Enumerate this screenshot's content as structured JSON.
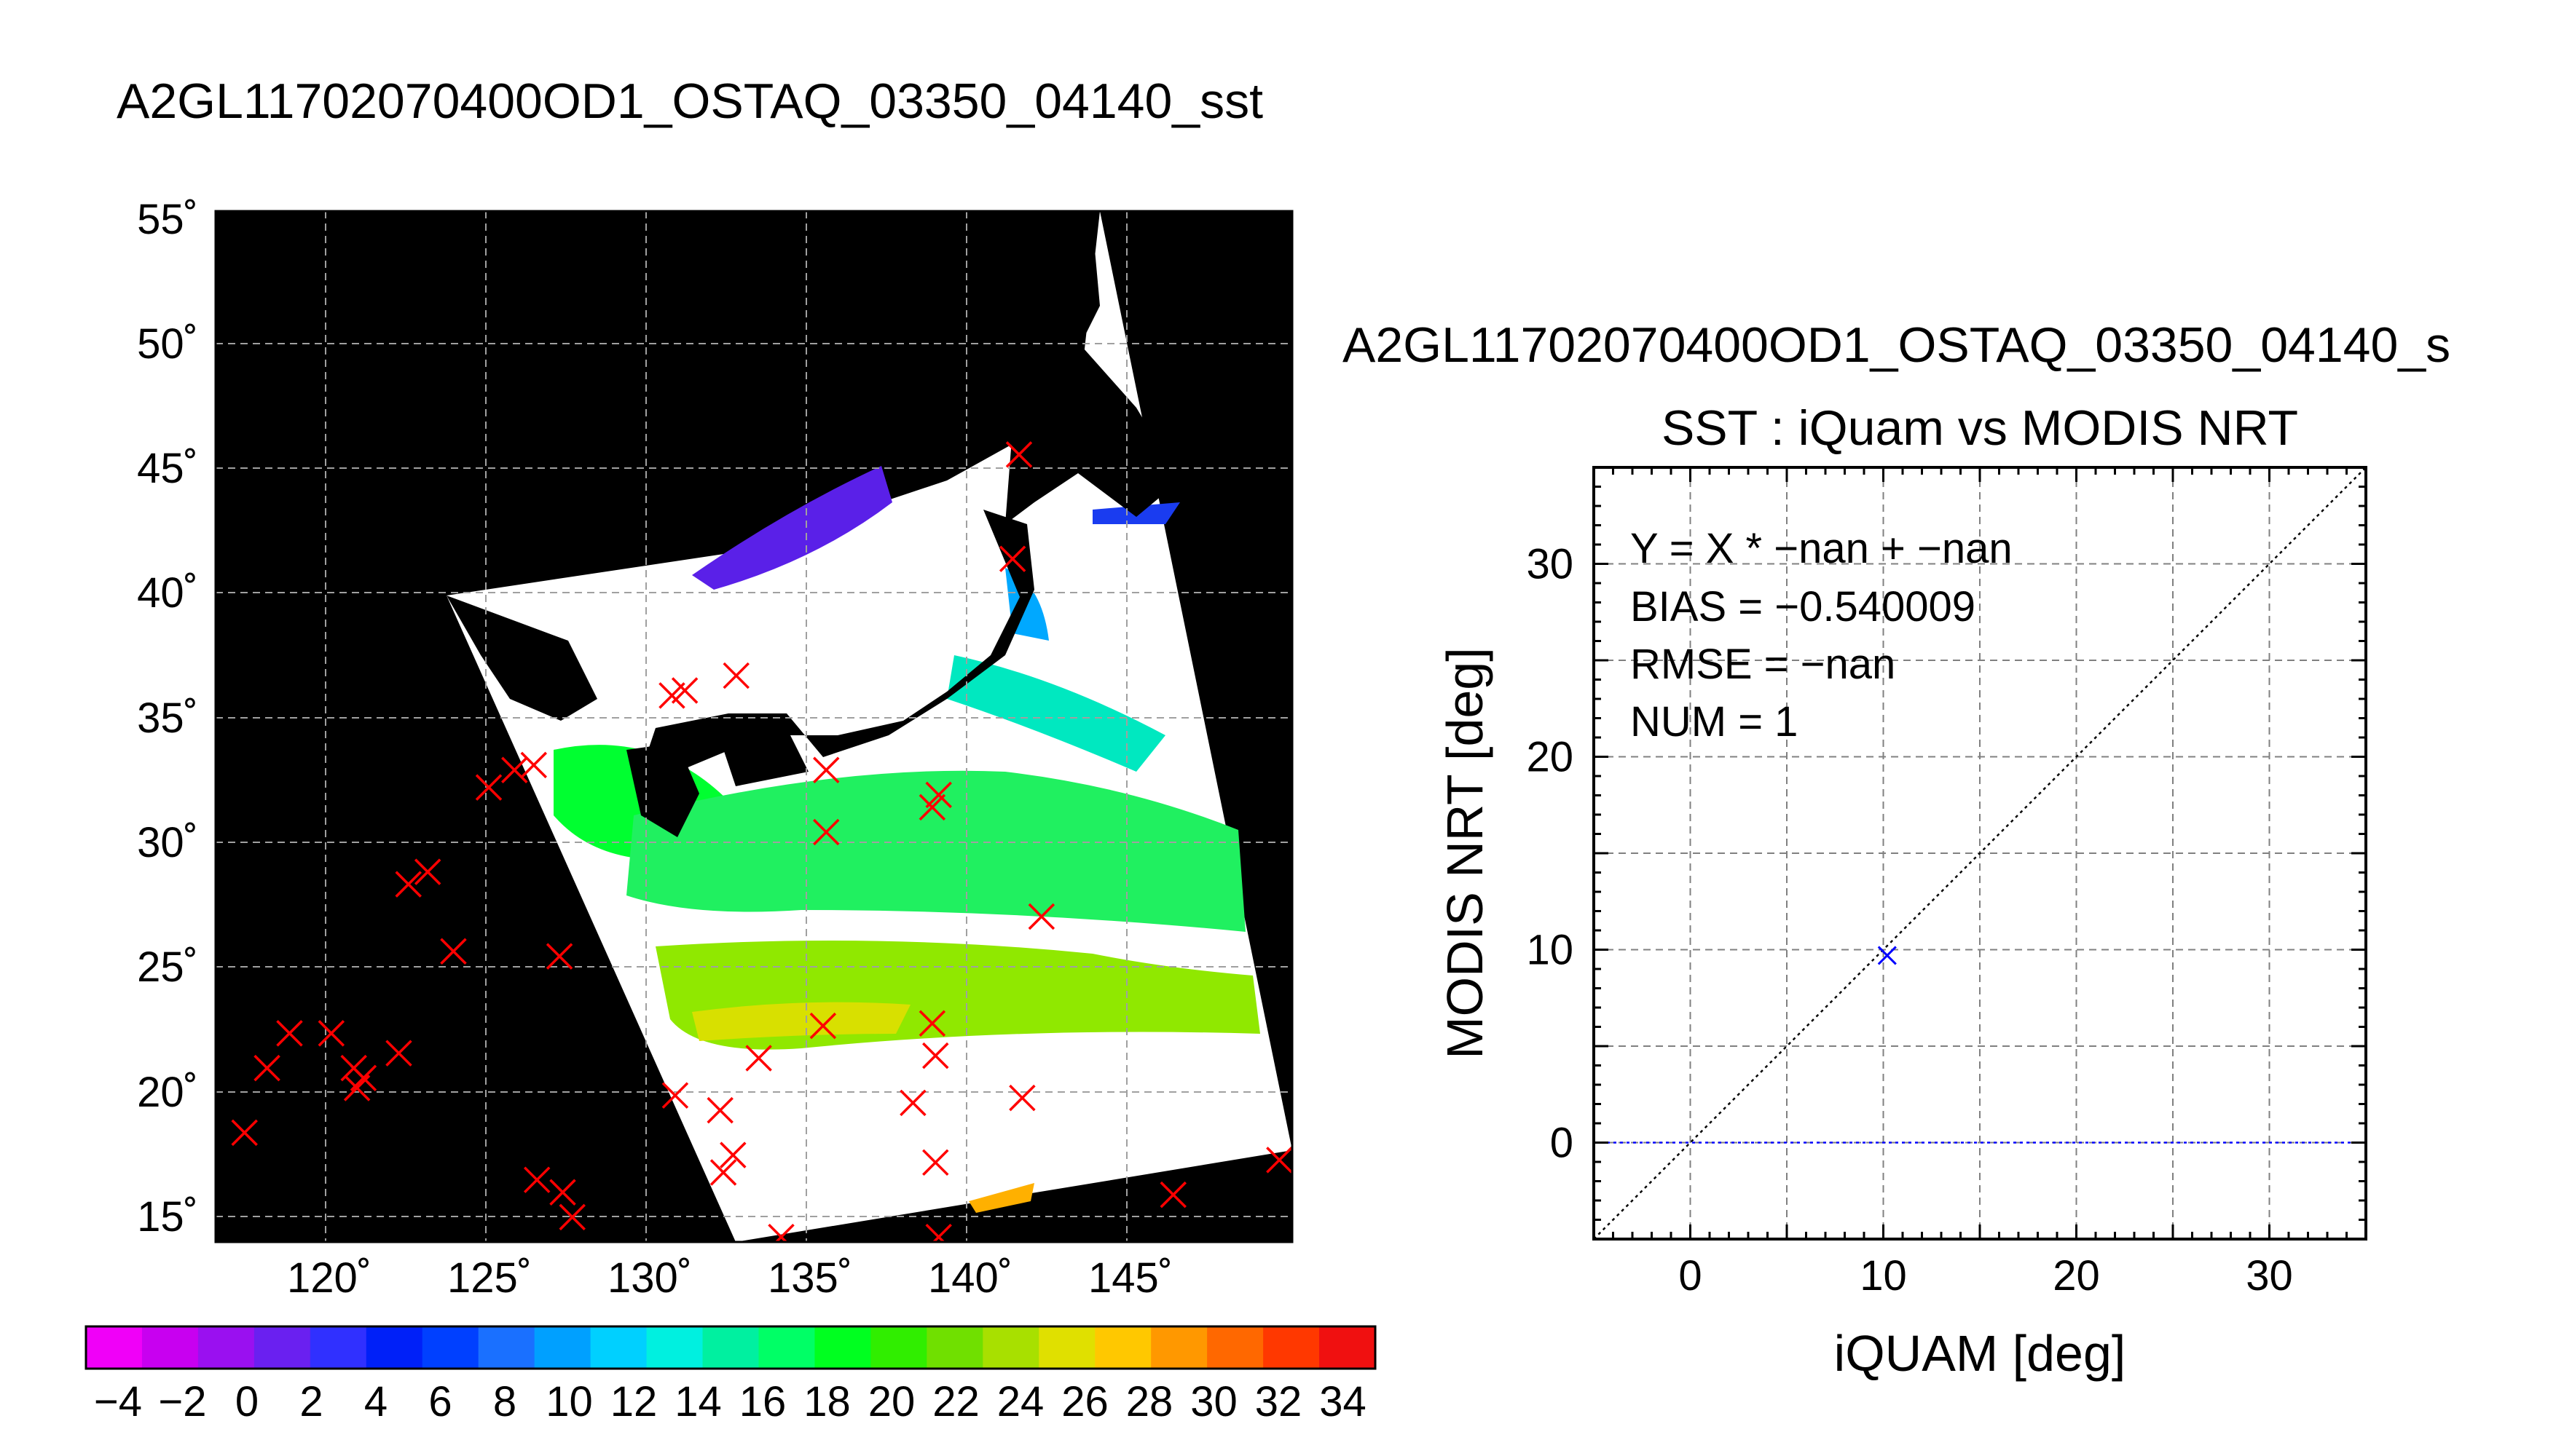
{
  "map_panel": {
    "title": "A2GL11702070400OD1_OSTAQ_03350_04140_sst",
    "lat_ticks": [
      "55˚",
      "50˚",
      "45˚",
      "40˚",
      "35˚",
      "30˚",
      "25˚",
      "20˚",
      "15˚"
    ],
    "lon_ticks": [
      "120˚",
      "125˚",
      "130˚",
      "135˚",
      "140˚",
      "145˚"
    ],
    "colorbar_ticks": [
      "−4",
      "−2",
      "0",
      "2",
      "4",
      "6",
      "8",
      "10",
      "12",
      "14",
      "16",
      "18",
      "20",
      "22",
      "24",
      "26",
      "28",
      "30",
      "32",
      "34"
    ],
    "colorbar_colors": [
      "#f000f8",
      "#c800f0",
      "#9a10f0",
      "#6a20f0",
      "#3030ff",
      "#0020f8",
      "#0040ff",
      "#1a70ff",
      "#00a0ff",
      "#00d0ff",
      "#00f0e0",
      "#00f0a0",
      "#00ff66",
      "#00ff20",
      "#30ee00",
      "#70e000",
      "#a8e000",
      "#e0e000",
      "#ffc800",
      "#ff9800",
      "#ff6800",
      "#ff3800",
      "#f01010"
    ],
    "marker_color": "#ff0000"
  },
  "chart_data": [
    {
      "type": "scatter",
      "title": "A2GL11702070400OD1_OSTAQ_03350_04140_sst",
      "xlabel": "",
      "ylabel": "",
      "xlim": [
        116.5,
        150
      ],
      "ylim": [
        14,
        55.5
      ],
      "x_ticks": [
        120,
        125,
        130,
        135,
        140,
        145
      ],
      "y_ticks": [
        15,
        20,
        25,
        30,
        35,
        40,
        45,
        50,
        55
      ],
      "grid": true,
      "series": [
        {
          "marker": "x",
          "color": "#ff0000",
          "x": [
            141.5,
            141.3,
            130.7,
            131.1,
            132.7,
            135.5,
            125.0,
            125.8,
            126.4,
            139.0,
            138.8,
            135.5,
            122.5,
            123.1,
            123.9,
            127.2,
            142.2,
            118.1,
            118.8,
            120.1,
            122.2,
            120.8,
            121.1,
            120.9,
            117.4,
            133.4,
            135.4,
            138.8,
            138.9,
            130.8,
            132.2,
            138.2,
            141.6,
            132.6,
            132.3,
            126.5,
            127.3,
            127.6,
            138.9,
            146.3,
            149.6,
            134.1,
            139.0
          ],
          "y": [
            45.7,
            41.5,
            36.0,
            36.2,
            36.8,
            33.0,
            32.3,
            33.0,
            33.2,
            32.0,
            31.5,
            30.5,
            28.4,
            28.9,
            25.7,
            25.5,
            27.1,
            21.0,
            22.4,
            22.4,
            21.6,
            21.0,
            20.6,
            20.2,
            18.4,
            21.4,
            22.7,
            22.8,
            21.5,
            19.9,
            19.3,
            19.6,
            19.8,
            17.5,
            16.8,
            16.5,
            16.0,
            15.0,
            17.2,
            15.9,
            17.3,
            14.2,
            14.2
          ]
        }
      ]
    },
    {
      "type": "scatter",
      "title": "SST : iQuam vs MODIS NRT",
      "suptitle": "A2GL11702070400OD1_OSTAQ_03350_04140_s",
      "xlabel": "iQUAM [deg]",
      "ylabel": "MODIS NRT [deg]",
      "xlim": [
        -5,
        35
      ],
      "ylim": [
        -5,
        35
      ],
      "x_ticks": [
        0,
        10,
        20,
        30
      ],
      "y_ticks": [
        0,
        10,
        20,
        30
      ],
      "grid": true,
      "series": [
        {
          "marker": "x",
          "color": "#0000ff",
          "x": [
            10.2
          ],
          "y": [
            9.7
          ]
        }
      ],
      "lines": [
        {
          "kind": "identity",
          "color": "#000000",
          "style": "dotted"
        },
        {
          "kind": "horizontal",
          "y": 0,
          "color": "#0000ff",
          "style": "dotted"
        }
      ],
      "annotations": [
        "Y = X * −nan + −nan",
        "BIAS = −0.540009",
        "RMSE = −nan",
        "NUM = 1"
      ]
    }
  ]
}
